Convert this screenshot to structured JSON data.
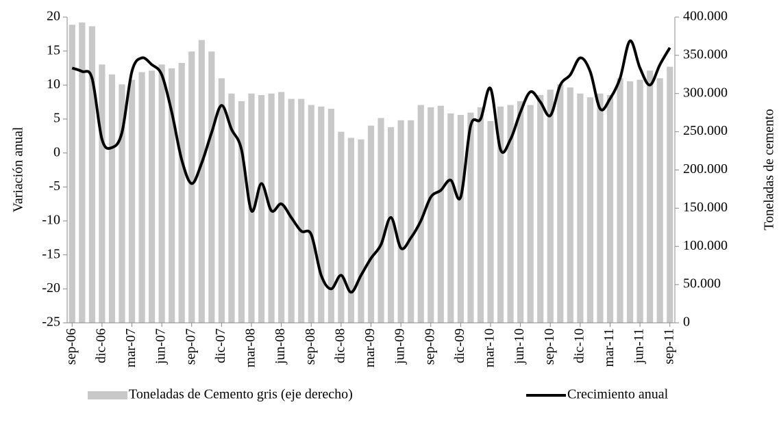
{
  "chart_data": {
    "type": "combo",
    "y_label": "Variación anual",
    "y2_label": "Toneladas de cemento",
    "categories": [
      "sep-06",
      null,
      null,
      "dic-06",
      null,
      null,
      "mar-07",
      null,
      null,
      "jun-07",
      null,
      null,
      "sep-07",
      null,
      null,
      "dic-07",
      null,
      null,
      "mar-08",
      null,
      null,
      "jun-08",
      null,
      null,
      "sep-08",
      null,
      null,
      "dic-08",
      null,
      null,
      "mar-09",
      null,
      null,
      "jun-09",
      null,
      null,
      "sep-09",
      null,
      null,
      "dic-09",
      null,
      null,
      "mar-10",
      null,
      null,
      "jun-10",
      null,
      null,
      "sep-10",
      null,
      null,
      "dic-10",
      null,
      null,
      "mar-11",
      null,
      null,
      "jun-11",
      null,
      null,
      "sep-11"
    ],
    "series": [
      {
        "name": "Toneladas de Cemento gris (eje derecho)",
        "type": "bar",
        "axis": "y2",
        "color": "#c8c8c8",
        "values": [
          390000,
          393000,
          388000,
          338000,
          325000,
          312000,
          318000,
          328000,
          330000,
          338000,
          333000,
          340000,
          355000,
          370000,
          355000,
          320000,
          300000,
          290000,
          300000,
          298000,
          300000,
          302000,
          293000,
          293000,
          285000,
          283000,
          280000,
          250000,
          242000,
          240000,
          258000,
          268000,
          256000,
          265000,
          265000,
          285000,
          282000,
          284000,
          274000,
          272000,
          275000,
          282000,
          264000,
          283000,
          285000,
          290000,
          285000,
          298000,
          305000,
          312000,
          308000,
          300000,
          295000,
          300000,
          298000,
          320000,
          316000,
          318000,
          330000,
          320000,
          335000
        ]
      },
      {
        "name": "Crecimiento anual",
        "type": "line",
        "color": "#000000",
        "values": [
          12.5,
          12,
          11,
          2,
          0.8,
          3,
          12,
          14,
          13,
          11.5,
          6,
          -1,
          -4.5,
          -1.5,
          3,
          7,
          3.5,
          0.5,
          -8.5,
          -4.5,
          -8.5,
          -7.5,
          -9.5,
          -11.5,
          -12,
          -18,
          -20,
          -18,
          -20.5,
          -18,
          -15.5,
          -13.5,
          -9.5,
          -14,
          -12.5,
          -10,
          -6.5,
          -5.5,
          -4,
          -6.5,
          4,
          5,
          9.5,
          0.5,
          2,
          6,
          9,
          7.5,
          5.5,
          10,
          11.5,
          14,
          12,
          6.5,
          8,
          11,
          16.5,
          12.5,
          10,
          13,
          15.5
        ]
      }
    ],
    "ylim": [
      -25,
      20
    ],
    "yticks": [
      -25,
      -20,
      -15,
      -10,
      -5,
      0,
      5,
      10,
      15,
      20
    ],
    "y2lim": [
      0,
      400000
    ],
    "y2ticks": [
      0,
      {
        "value": 50000,
        "label": "50.000"
      },
      {
        "value": 100000,
        "label": "100.000"
      },
      {
        "value": 150000,
        "label": "150.000"
      },
      {
        "value": 200000,
        "label": "200.000"
      },
      {
        "value": 250000,
        "label": "250.000"
      },
      {
        "value": 300000,
        "label": "300.000"
      },
      {
        "value": 350000,
        "label": "350.000"
      },
      {
        "value": 400000,
        "label": "400.000"
      }
    ],
    "legend": "bottom"
  }
}
